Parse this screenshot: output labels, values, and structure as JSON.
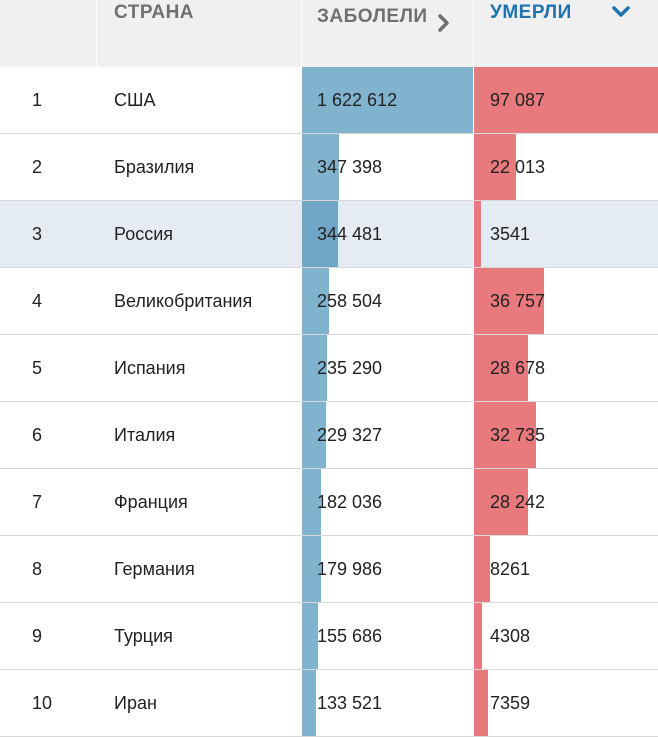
{
  "header": {
    "country": "СТРАНА",
    "cases": "ЗАБОЛЕЛИ",
    "deaths": "УМЕРЛИ",
    "cases_sort_icon": "chevron-right-icon",
    "deaths_sort_icon": "chevron-down-icon"
  },
  "colors": {
    "cases_bar": "#7fb3ce",
    "deaths_bar": "#e8797c",
    "active_header": "#1e73b0",
    "highlight_row": "#e5ebf2"
  },
  "rows": [
    {
      "rank": "1",
      "country": "США",
      "cases": "1 622 612",
      "deaths": "97 087",
      "cases_value": 1622612,
      "deaths_value": 97087
    },
    {
      "rank": "2",
      "country": "Бразилия",
      "cases": "347 398",
      "deaths": "22 013",
      "cases_value": 347398,
      "deaths_value": 22013
    },
    {
      "rank": "3",
      "country": "Россия",
      "cases": "344 481",
      "deaths": "3541",
      "cases_value": 344481,
      "deaths_value": 3541
    },
    {
      "rank": "4",
      "country": "Великобритания",
      "cases": "258 504",
      "deaths": "36 757",
      "cases_value": 258504,
      "deaths_value": 36757
    },
    {
      "rank": "5",
      "country": "Испания",
      "cases": "235 290",
      "deaths": "28 678",
      "cases_value": 235290,
      "deaths_value": 28678
    },
    {
      "rank": "6",
      "country": "Италия",
      "cases": "229 327",
      "deaths": "32 735",
      "cases_value": 229327,
      "deaths_value": 32735
    },
    {
      "rank": "7",
      "country": "Франция",
      "cases": "182 036",
      "deaths": "28 242",
      "cases_value": 182036,
      "deaths_value": 28242
    },
    {
      "rank": "8",
      "country": "Германия",
      "cases": "179 986",
      "deaths": "8261",
      "cases_value": 179986,
      "deaths_value": 8261
    },
    {
      "rank": "9",
      "country": "Турция",
      "cases": "155 686",
      "deaths": "4308",
      "cases_value": 155686,
      "deaths_value": 4308
    },
    {
      "rank": "10",
      "country": "Иран",
      "cases": "133 521",
      "deaths": "7359",
      "cases_value": 133521,
      "deaths_value": 7359
    }
  ],
  "highlighted_row": "3"
}
